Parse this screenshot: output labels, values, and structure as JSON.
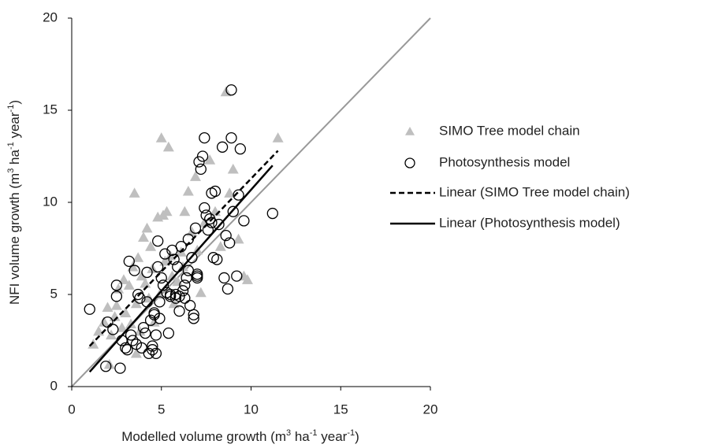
{
  "chart_data": {
    "type": "scatter",
    "x_label": [
      "Modelled volume growth (m",
      "3",
      " ha",
      "-1",
      " year",
      "-1",
      ")"
    ],
    "y_label": [
      "NFI volume growth (m",
      "3",
      " ha",
      "-1",
      " year",
      "-1",
      ")"
    ],
    "xlim": [
      0,
      20
    ],
    "ylim": [
      0,
      20
    ],
    "xticks": [
      0,
      5,
      10,
      15,
      20
    ],
    "yticks": [
      0,
      5,
      10,
      15,
      20
    ],
    "reference_line": {
      "x": [
        0,
        20
      ],
      "values": [
        0,
        20
      ],
      "color": "#999999"
    },
    "series": [
      {
        "name": "SIMO Tree model chain",
        "color": "#bfbfbf",
        "marker": "triangle",
        "x": [
          1.2,
          1.5,
          1.8,
          2.0,
          2.2,
          2.4,
          2.5,
          2.6,
          2.8,
          2.9,
          3.0,
          3.2,
          3.3,
          3.4,
          3.5,
          3.6,
          3.7,
          3.8,
          3.9,
          4.0,
          4.1,
          4.2,
          4.3,
          4.4,
          4.5,
          4.6,
          4.8,
          4.9,
          5.0,
          5.1,
          5.2,
          5.3,
          5.4,
          5.5,
          5.7,
          5.9,
          6.1,
          6.3,
          6.5,
          6.7,
          6.9,
          7.0,
          7.2,
          7.4,
          7.7,
          8.0,
          8.3,
          8.6,
          8.8,
          9.0,
          9.3,
          9.6,
          9.8,
          11.5,
          2.1,
          3.6,
          6.2,
          5.6
        ],
        "values": [
          2.3,
          3.0,
          3.5,
          4.3,
          2.8,
          3.8,
          4.4,
          5.3,
          3.2,
          5.8,
          4.0,
          5.5,
          3.4,
          6.5,
          10.5,
          4.5,
          7.0,
          3.0,
          6.0,
          8.1,
          5.6,
          8.6,
          4.8,
          7.6,
          6.4,
          3.5,
          9.2,
          5.0,
          13.5,
          9.3,
          6.8,
          9.5,
          13.0,
          7.1,
          4.5,
          5.7,
          7.3,
          9.5,
          10.6,
          8.4,
          11.4,
          7.4,
          5.1,
          8.9,
          12.3,
          9.5,
          7.6,
          16.0,
          10.5,
          11.8,
          8.0,
          6.0,
          5.8,
          13.5,
          1.2,
          1.8,
          6.5,
          6.0
        ]
      },
      {
        "name": "Photosynthesis model",
        "color": "#000000",
        "marker": "circle",
        "x": [
          1.0,
          1.9,
          2.7,
          2.3,
          2.5,
          2.5,
          2.8,
          3.0,
          3.2,
          3.3,
          3.5,
          3.6,
          3.7,
          3.8,
          3.9,
          4.0,
          4.1,
          4.2,
          4.3,
          4.4,
          4.5,
          4.5,
          4.6,
          4.7,
          4.7,
          4.8,
          4.8,
          4.9,
          4.9,
          5.0,
          5.1,
          5.2,
          5.3,
          5.4,
          5.5,
          5.6,
          5.7,
          5.8,
          5.9,
          6.0,
          6.1,
          6.2,
          6.3,
          6.4,
          6.5,
          6.5,
          6.6,
          6.7,
          6.8,
          6.8,
          6.9,
          7.0,
          7.0,
          7.1,
          7.2,
          7.3,
          7.4,
          7.4,
          7.5,
          7.6,
          7.7,
          7.8,
          7.8,
          7.9,
          8.0,
          8.1,
          8.2,
          8.4,
          8.5,
          8.6,
          8.7,
          8.8,
          8.9,
          8.9,
          9.0,
          9.2,
          9.3,
          9.4,
          9.6,
          11.2,
          6.0,
          5.5,
          4.6,
          3.1,
          2.0,
          3.4,
          5.8,
          6.3,
          7.0,
          4.2
        ],
        "values": [
          4.2,
          1.1,
          1.0,
          3.1,
          4.9,
          5.5,
          2.5,
          2.1,
          6.8,
          2.8,
          6.3,
          2.3,
          5.0,
          4.8,
          2.1,
          3.2,
          2.9,
          4.6,
          1.8,
          3.6,
          2.2,
          2.0,
          3.9,
          1.8,
          2.8,
          7.9,
          6.5,
          4.6,
          3.7,
          5.9,
          5.5,
          7.2,
          5.1,
          2.9,
          4.9,
          7.4,
          6.9,
          5.0,
          6.5,
          4.1,
          7.6,
          5.2,
          4.8,
          5.9,
          6.3,
          8.0,
          4.4,
          7.0,
          3.9,
          3.7,
          8.6,
          6.1,
          5.9,
          12.2,
          11.8,
          12.5,
          13.5,
          9.7,
          9.3,
          8.5,
          9.1,
          8.9,
          10.5,
          7.0,
          10.6,
          6.9,
          8.8,
          13.0,
          5.9,
          8.2,
          5.3,
          7.8,
          13.5,
          16.1,
          9.5,
          6.0,
          10.4,
          12.9,
          9.0,
          9.4,
          4.9,
          5.0,
          4.0,
          2.0,
          3.5,
          2.5,
          4.8,
          5.5,
          6.0,
          6.2
        ]
      },
      {
        "name": "Linear (SIMO Tree model chain)",
        "color": "#000000",
        "marker": "dashed",
        "x": [
          1.0,
          11.5
        ],
        "values": [
          2.2,
          12.8
        ]
      },
      {
        "name": "Linear (Photosynthesis model)",
        "color": "#000000",
        "marker": "solid",
        "x": [
          1.0,
          11.2
        ],
        "values": [
          0.8,
          12.0
        ]
      }
    ]
  }
}
